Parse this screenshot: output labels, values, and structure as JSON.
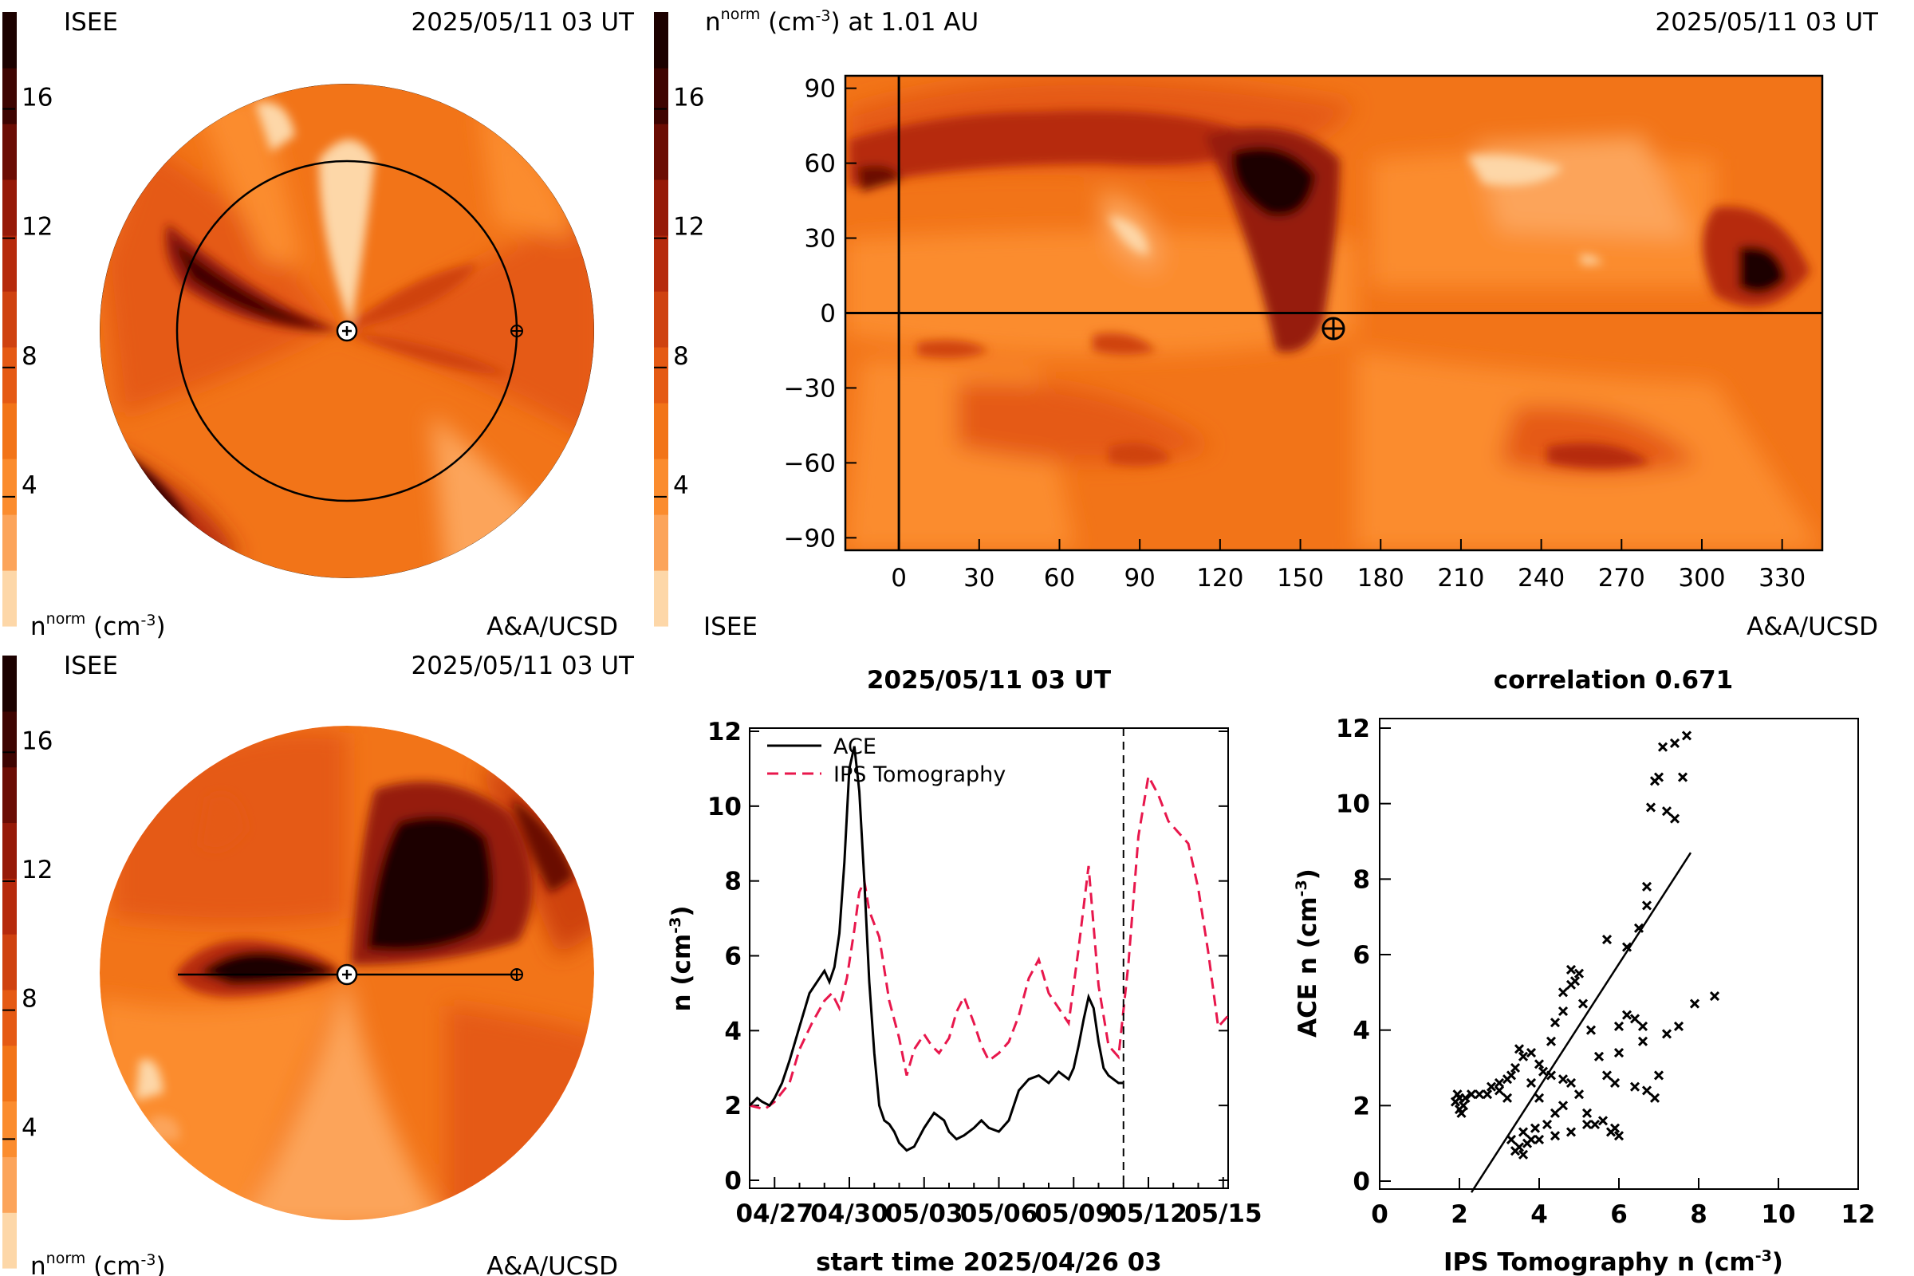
{
  "colors": {
    "scale": [
      "#fdd7a8",
      "#fca45a",
      "#fb8c2e",
      "#f27418",
      "#e55a14",
      "#cf4210",
      "#b62a0c",
      "#961a08",
      "#6b0d04",
      "#3e0401",
      "#1c0100"
    ],
    "ace": "#000000",
    "ips": "#e8174c"
  },
  "top_left": {
    "label_tl": "ISEE",
    "date": "2025/05/11 03 UT",
    "unit": "n^norm (cm^-3)",
    "credit": "A&A/UCSD",
    "colorbar_ticks": [
      "4",
      "8",
      "12",
      "16"
    ]
  },
  "top_right": {
    "title": "n^norm (cm^-3) at 1.01 AU",
    "date": "2025/05/11 03 UT",
    "label_bl": "ISEE",
    "credit": "A&A/UCSD",
    "colorbar_ticks": [
      "4",
      "8",
      "12",
      "16"
    ],
    "x_ticks": [
      "0",
      "30",
      "60",
      "90",
      "120",
      "150",
      "180",
      "210",
      "240",
      "270",
      "300",
      "330"
    ],
    "y_ticks": [
      "90",
      "60",
      "30",
      "0",
      "−30",
      "−60",
      "−90"
    ]
  },
  "bottom_left": {
    "label_tl": "ISEE",
    "date": "2025/05/11 03 UT",
    "unit": "n^norm (cm^-3)",
    "credit": "A&A/UCSD",
    "colorbar_ticks": [
      "4",
      "8",
      "12",
      "16"
    ]
  },
  "chart_data": [
    {
      "type": "line",
      "title": "2025/05/11 03 UT",
      "xlabel": "start time 2025/04/26 03",
      "ylabel": "n (cm-3)",
      "x_ticks": [
        "04/27",
        "04/30",
        "05/03",
        "05/06",
        "05/09",
        "05/12",
        "05/15"
      ],
      "x_tick_days": [
        1,
        4,
        7,
        10,
        13,
        16,
        19
      ],
      "xlim": [
        0,
        19.2
      ],
      "ylim": [
        0,
        12
      ],
      "y_ticks": [
        0,
        2,
        4,
        6,
        8,
        10,
        12
      ],
      "now_day": 15,
      "legend": "top-left",
      "series": [
        {
          "name": "ACE",
          "style": "solid",
          "x": [
            0,
            0.3,
            0.5,
            0.8,
            1.0,
            1.3,
            1.6,
            2.0,
            2.4,
            2.8,
            3.0,
            3.2,
            3.4,
            3.6,
            3.8,
            4.0,
            4.2,
            4.4,
            4.6,
            4.8,
            5.0,
            5.2,
            5.4,
            5.6,
            5.8,
            6.0,
            6.3,
            6.6,
            7.0,
            7.4,
            7.8,
            8.0,
            8.3,
            8.6,
            9.0,
            9.3,
            9.6,
            10.0,
            10.4,
            10.8,
            11.2,
            11.6,
            12.0,
            12.4,
            12.8,
            13.0,
            13.2,
            13.4,
            13.6,
            13.8,
            14.0,
            14.2,
            14.4,
            14.6,
            14.8,
            15.0
          ],
          "y": [
            2.0,
            2.2,
            2.1,
            2.0,
            2.2,
            2.6,
            3.2,
            4.1,
            5.0,
            5.4,
            5.6,
            5.3,
            5.7,
            6.6,
            8.5,
            11.0,
            11.6,
            10.4,
            8.0,
            5.3,
            3.4,
            2.0,
            1.6,
            1.5,
            1.3,
            1.0,
            0.8,
            0.9,
            1.4,
            1.8,
            1.6,
            1.3,
            1.1,
            1.2,
            1.4,
            1.6,
            1.4,
            1.3,
            1.6,
            2.4,
            2.7,
            2.8,
            2.6,
            2.9,
            2.7,
            3.0,
            3.6,
            4.3,
            4.9,
            4.6,
            3.7,
            3.0,
            2.8,
            2.7,
            2.6,
            2.6
          ]
        },
        {
          "name": "IPS Tomography",
          "style": "dashed",
          "x": [
            0,
            0.6,
            1.0,
            1.6,
            2.0,
            2.5,
            3.0,
            3.3,
            3.6,
            3.9,
            4.2,
            4.4,
            4.6,
            4.8,
            5.2,
            5.6,
            6.0,
            6.3,
            6.6,
            7.0,
            7.3,
            7.6,
            8.0,
            8.3,
            8.6,
            9.0,
            9.3,
            9.6,
            10.0,
            10.4,
            10.8,
            11.2,
            11.6,
            12.0,
            12.4,
            12.8,
            13.2,
            13.6,
            14.0,
            14.4,
            14.8,
            15.2,
            15.6,
            16.0,
            16.4,
            16.8,
            17.2,
            17.6,
            18.0,
            18.4,
            18.8,
            19.2
          ],
          "y": [
            2.0,
            1.9,
            2.1,
            2.6,
            3.5,
            4.2,
            4.8,
            5.0,
            4.6,
            5.4,
            6.7,
            7.7,
            8.0,
            7.2,
            6.5,
            4.8,
            3.8,
            2.8,
            3.5,
            3.9,
            3.6,
            3.4,
            3.8,
            4.5,
            4.9,
            4.2,
            3.6,
            3.2,
            3.4,
            3.7,
            4.4,
            5.4,
            5.9,
            5.0,
            4.6,
            4.2,
            6.2,
            8.4,
            5.2,
            3.6,
            3.3,
            5.8,
            9.2,
            10.8,
            10.3,
            9.6,
            9.3,
            9.0,
            7.8,
            6.1,
            4.1,
            4.4
          ]
        }
      ]
    },
    {
      "type": "scatter",
      "title": "correlation 0.671",
      "xlabel": "IPS Tomography n (cm-3)",
      "ylabel": "ACE n (cm-3)",
      "xlim": [
        0,
        12
      ],
      "ylim": [
        0,
        12
      ],
      "x_ticks": [
        0,
        2,
        4,
        6,
        8,
        10,
        12
      ],
      "y_ticks": [
        0,
        2,
        4,
        6,
        8,
        10,
        12
      ],
      "fit_line": {
        "x": [
          2.3,
          7.8
        ],
        "y": [
          -0.3,
          8.7
        ]
      },
      "points": [
        [
          1.9,
          2.1
        ],
        [
          2.0,
          2.2
        ],
        [
          2.0,
          1.9
        ],
        [
          1.95,
          2.3
        ],
        [
          2.1,
          2.0
        ],
        [
          2.05,
          1.8
        ],
        [
          2.15,
          2.2
        ],
        [
          2.3,
          2.3
        ],
        [
          2.5,
          2.3
        ],
        [
          2.7,
          2.3
        ],
        [
          2.8,
          2.5
        ],
        [
          3.0,
          2.6
        ],
        [
          3.2,
          2.7
        ],
        [
          3.3,
          2.8
        ],
        [
          3.0,
          2.4
        ],
        [
          3.4,
          3.0
        ],
        [
          3.6,
          3.3
        ],
        [
          3.5,
          3.5
        ],
        [
          3.8,
          3.4
        ],
        [
          4.0,
          3.1
        ],
        [
          4.1,
          2.9
        ],
        [
          4.3,
          2.8
        ],
        [
          4.6,
          2.7
        ],
        [
          4.8,
          2.6
        ],
        [
          5.0,
          2.3
        ],
        [
          5.2,
          1.8
        ],
        [
          5.4,
          1.5
        ],
        [
          5.8,
          1.3
        ],
        [
          5.9,
          1.4
        ],
        [
          6.0,
          1.2
        ],
        [
          5.6,
          1.6
        ],
        [
          5.2,
          1.5
        ],
        [
          4.8,
          1.3
        ],
        [
          4.4,
          1.2
        ],
        [
          4.0,
          1.1
        ],
        [
          3.7,
          1.0
        ],
        [
          3.5,
          0.9
        ],
        [
          3.4,
          0.8
        ],
        [
          3.6,
          0.7
        ],
        [
          3.8,
          1.1
        ],
        [
          3.3,
          1.1
        ],
        [
          3.9,
          1.4
        ],
        [
          3.6,
          1.3
        ],
        [
          4.2,
          1.5
        ],
        [
          4.4,
          1.8
        ],
        [
          4.6,
          2.0
        ],
        [
          4.0,
          2.2
        ],
        [
          3.8,
          2.6
        ],
        [
          4.3,
          3.7
        ],
        [
          4.4,
          4.2
        ],
        [
          4.6,
          4.5
        ],
        [
          4.6,
          5.0
        ],
        [
          4.8,
          5.2
        ],
        [
          4.8,
          5.6
        ],
        [
          5.0,
          5.5
        ],
        [
          4.9,
          5.3
        ],
        [
          5.1,
          4.7
        ],
        [
          5.3,
          4.0
        ],
        [
          5.5,
          3.3
        ],
        [
          5.7,
          2.8
        ],
        [
          5.9,
          2.6
        ],
        [
          6.0,
          3.4
        ],
        [
          6.0,
          4.1
        ],
        [
          6.2,
          4.4
        ],
        [
          6.4,
          4.3
        ],
        [
          6.6,
          4.1
        ],
        [
          6.6,
          3.7
        ],
        [
          6.4,
          2.5
        ],
        [
          6.7,
          2.4
        ],
        [
          7.0,
          2.8
        ],
        [
          6.9,
          2.2
        ],
        [
          7.2,
          3.9
        ],
        [
          7.5,
          4.1
        ],
        [
          7.9,
          4.7
        ],
        [
          8.4,
          4.9
        ],
        [
          6.2,
          6.2
        ],
        [
          6.5,
          6.7
        ],
        [
          6.7,
          7.3
        ],
        [
          6.7,
          7.8
        ],
        [
          6.8,
          9.9
        ],
        [
          6.9,
          10.6
        ],
        [
          7.2,
          9.8
        ],
        [
          7.0,
          10.7
        ],
        [
          7.1,
          11.5
        ],
        [
          7.4,
          11.6
        ],
        [
          7.7,
          11.8
        ],
        [
          7.6,
          10.7
        ],
        [
          7.4,
          9.6
        ],
        [
          5.7,
          6.4
        ],
        [
          3.2,
          2.2
        ]
      ]
    }
  ]
}
